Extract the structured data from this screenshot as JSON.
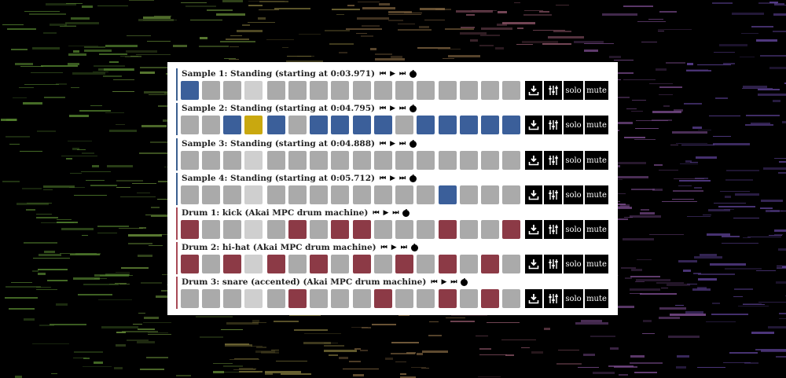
{
  "colors": {
    "sample_accent": "#3b5f8f",
    "drum_accent": "#a84a57",
    "step_off": "#aaaaaa",
    "step_beat": "#cfcfcf",
    "step_on_blue": "#3b5f9a",
    "step_on_yellow": "#c9a80f",
    "step_on_red": "#8c3a46",
    "button_bg": "#000000"
  },
  "icons": {
    "prev": "⏮",
    "play": "▶",
    "next": "⏭",
    "info": "i",
    "download": "download-icon",
    "mixer": "mixer-icon"
  },
  "buttons": {
    "solo": "solo",
    "mute": "mute"
  },
  "tracks": [
    {
      "kind": "sample",
      "title": "Sample 1: Standing (starting at 0:03.971)",
      "steps": [
        "b",
        "o",
        "o",
        "l",
        "o",
        "o",
        "o",
        "o",
        "o",
        "o",
        "o",
        "o",
        "o",
        "o",
        "o",
        "o"
      ]
    },
    {
      "kind": "sample",
      "title": "Sample 2: Standing (starting at 0:04.795)",
      "steps": [
        "o",
        "o",
        "b",
        "y",
        "b",
        "o",
        "b",
        "b",
        "b",
        "b",
        "o",
        "b",
        "b",
        "b",
        "b",
        "b"
      ]
    },
    {
      "kind": "sample",
      "title": "Sample 3: Standing (starting at 0:04.888)",
      "steps": [
        "o",
        "o",
        "o",
        "l",
        "o",
        "o",
        "o",
        "o",
        "o",
        "o",
        "o",
        "o",
        "o",
        "o",
        "o",
        "o"
      ]
    },
    {
      "kind": "sample",
      "title": "Sample 4: Standing (starting at 0:05.712)",
      "steps": [
        "o",
        "o",
        "o",
        "l",
        "o",
        "o",
        "o",
        "o",
        "o",
        "o",
        "o",
        "o",
        "b",
        "o",
        "o",
        "o"
      ]
    },
    {
      "kind": "drum",
      "title": "Drum 1: kick (Akai MPC drum machine)",
      "steps": [
        "r",
        "o",
        "o",
        "l",
        "o",
        "r",
        "o",
        "r",
        "r",
        "o",
        "o",
        "o",
        "r",
        "o",
        "o",
        "r"
      ]
    },
    {
      "kind": "drum",
      "title": "Drum 2: hi-hat (Akai MPC drum machine)",
      "steps": [
        "r",
        "o",
        "r",
        "l",
        "r",
        "o",
        "r",
        "o",
        "r",
        "o",
        "r",
        "o",
        "r",
        "o",
        "r",
        "o"
      ]
    },
    {
      "kind": "drum",
      "title": "Drum 3: snare (accented) (Akai MPC drum machine)",
      "steps": [
        "o",
        "o",
        "o",
        "l",
        "o",
        "r",
        "o",
        "o",
        "o",
        "r",
        "o",
        "o",
        "r",
        "o",
        "r",
        "o"
      ]
    }
  ]
}
